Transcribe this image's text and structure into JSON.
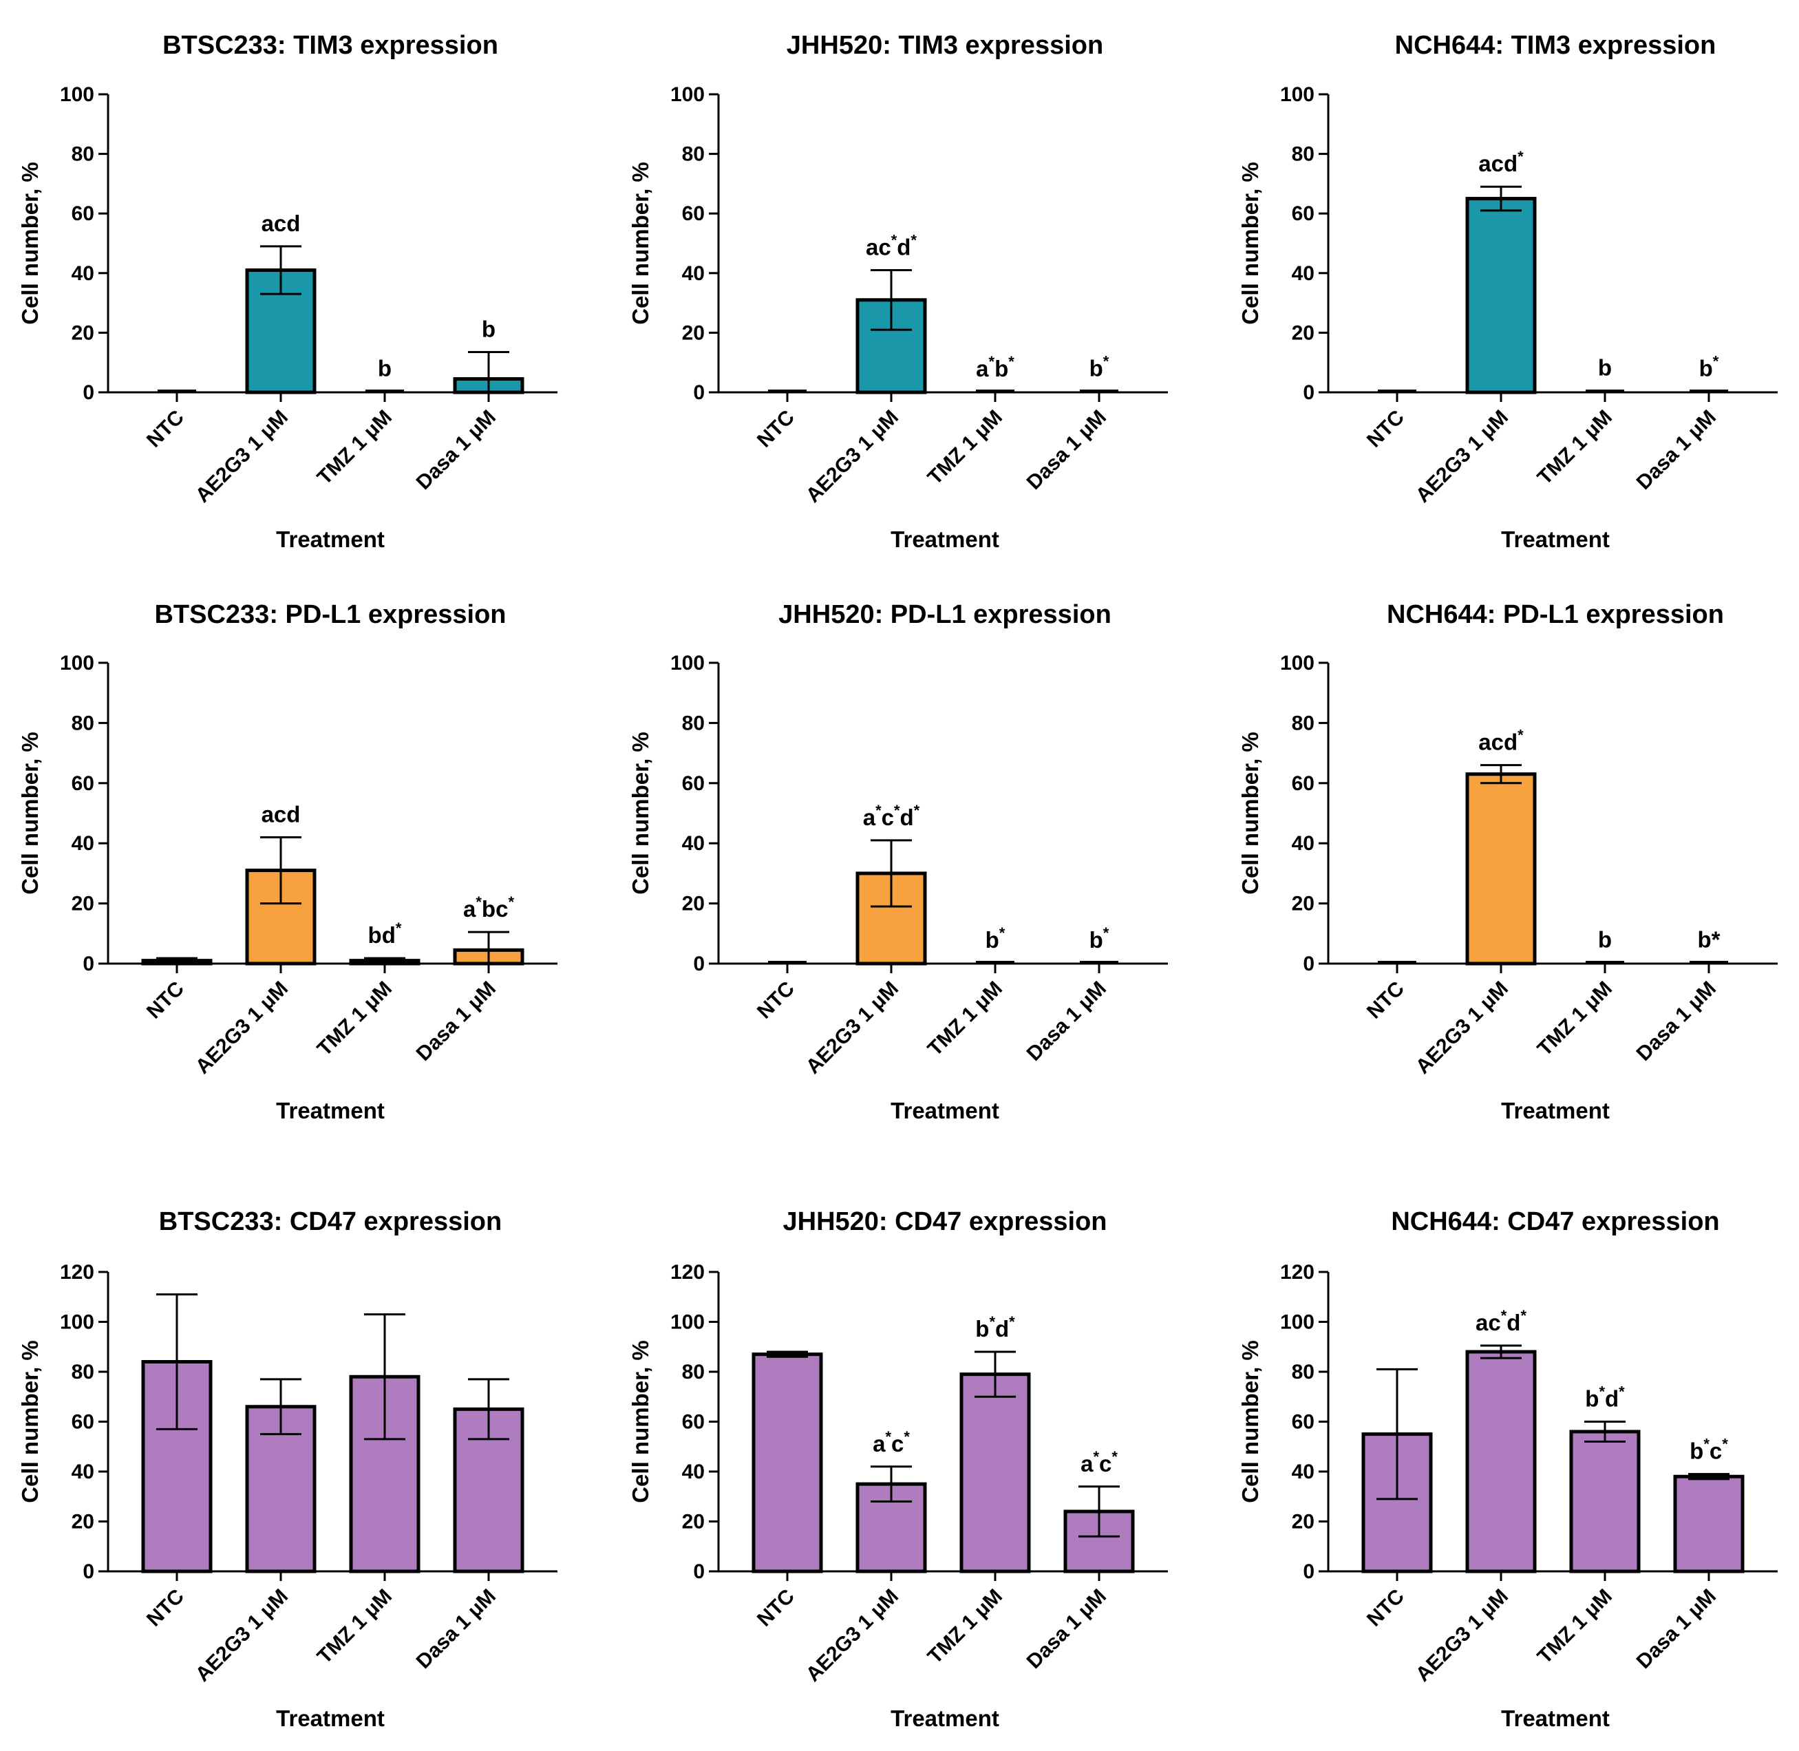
{
  "chart_data": [
    {
      "type": "bar",
      "title": "BTSC233: TIM3 expression",
      "xlabel": "Treatment",
      "ylabel": "Cell number, %",
      "ylim": [
        0,
        100
      ],
      "yticks": [
        0,
        20,
        40,
        60,
        80,
        100
      ],
      "color": "#1a97a8",
      "categories": [
        "NTC",
        "AE2G3 1 μM",
        "TMZ 1 μM",
        "Dasa 1 μM"
      ],
      "values": [
        0.3,
        41,
        0.2,
        4.5
      ],
      "errors": [
        0.3,
        8,
        0.2,
        9
      ],
      "annotations": [
        null,
        [
          {
            "t": "acd"
          }
        ],
        [
          {
            "t": "b"
          }
        ],
        [
          {
            "t": "b"
          }
        ]
      ]
    },
    {
      "type": "bar",
      "title": "JHH520: TIM3 expression",
      "xlabel": "Treatment",
      "ylabel": "Cell number, %",
      "ylim": [
        0,
        100
      ],
      "yticks": [
        0,
        20,
        40,
        60,
        80,
        100
      ],
      "color": "#1a97a8",
      "categories": [
        "NTC",
        "AE2G3 1 μM",
        "TMZ 1 μM",
        "Dasa 1 μM"
      ],
      "values": [
        0.2,
        31,
        0.1,
        0.2
      ],
      "errors": [
        0.2,
        10,
        0.1,
        0.2
      ],
      "annotations": [
        null,
        [
          {
            "t": "ac"
          },
          {
            "t": "*",
            "s": 1
          },
          {
            "t": "d"
          },
          {
            "t": "*",
            "s": 1
          }
        ],
        [
          {
            "t": "a"
          },
          {
            "t": "*",
            "s": 1
          },
          {
            "t": "b"
          },
          {
            "t": "*",
            "s": 1
          }
        ],
        [
          {
            "t": "b"
          },
          {
            "t": "*",
            "s": 1
          }
        ]
      ]
    },
    {
      "type": "bar",
      "title": "NCH644: TIM3 expression",
      "xlabel": "Treatment",
      "ylabel": "Cell number, %",
      "ylim": [
        0,
        100
      ],
      "yticks": [
        0,
        20,
        40,
        60,
        80,
        100
      ],
      "color": "#1a97a8",
      "categories": [
        "NTC",
        "AE2G3 1 μM",
        "TMZ 1 μM",
        "Dasa 1 μM"
      ],
      "values": [
        0.3,
        65,
        0.3,
        0.2
      ],
      "errors": [
        0.3,
        4,
        0.3,
        0.2
      ],
      "annotations": [
        null,
        [
          {
            "t": "acd"
          },
          {
            "t": "*",
            "s": 1
          }
        ],
        [
          {
            "t": "b"
          }
        ],
        [
          {
            "t": "b"
          },
          {
            "t": "*",
            "s": 1
          }
        ]
      ]
    },
    {
      "type": "bar",
      "title": "BTSC233: PD-L1 expression",
      "xlabel": "Treatment",
      "ylabel": "Cell number, %",
      "ylim": [
        0,
        100
      ],
      "yticks": [
        0,
        20,
        40,
        60,
        80,
        100
      ],
      "color": "#f7a23e",
      "categories": [
        "NTC",
        "AE2G3 1 μM",
        "TMZ 1 μM",
        "Dasa 1 μM"
      ],
      "values": [
        1,
        31,
        1,
        4.5
      ],
      "errors": [
        0.8,
        11,
        0.8,
        6
      ],
      "annotations": [
        null,
        [
          {
            "t": "acd"
          }
        ],
        [
          {
            "t": "bd"
          },
          {
            "t": "*",
            "s": 1
          }
        ],
        [
          {
            "t": "a"
          },
          {
            "t": "*",
            "s": 1
          },
          {
            "t": "bc"
          },
          {
            "t": "*",
            "s": 1
          }
        ]
      ]
    },
    {
      "type": "bar",
      "title": "JHH520: PD-L1 expression",
      "xlabel": "Treatment",
      "ylabel": "Cell number, %",
      "ylim": [
        0,
        100
      ],
      "yticks": [
        0,
        20,
        40,
        60,
        80,
        100
      ],
      "color": "#f7a23e",
      "categories": [
        "NTC",
        "AE2G3 1 μM",
        "TMZ 1 μM",
        "Dasa 1 μM"
      ],
      "values": [
        0.2,
        30,
        0.1,
        0.1
      ],
      "errors": [
        0.2,
        11,
        0.1,
        0.1
      ],
      "annotations": [
        null,
        [
          {
            "t": "a"
          },
          {
            "t": "*",
            "s": 1
          },
          {
            "t": "c"
          },
          {
            "t": "*",
            "s": 1
          },
          {
            "t": "d"
          },
          {
            "t": "*",
            "s": 1
          }
        ],
        [
          {
            "t": "b"
          },
          {
            "t": "*",
            "s": 1
          }
        ],
        [
          {
            "t": "b"
          },
          {
            "t": "*",
            "s": 1
          }
        ]
      ]
    },
    {
      "type": "bar",
      "title": "NCH644: PD-L1 expression",
      "xlabel": "Treatment",
      "ylabel": "Cell number, %",
      "ylim": [
        0,
        100
      ],
      "yticks": [
        0,
        20,
        40,
        60,
        80,
        100
      ],
      "color": "#f7a23e",
      "categories": [
        "NTC",
        "AE2G3 1 μM",
        "TMZ 1 μM",
        "Dasa 1 μM"
      ],
      "values": [
        0.1,
        63,
        0.2,
        0.2
      ],
      "errors": [
        0.1,
        3,
        0.2,
        0.2
      ],
      "annotations": [
        null,
        [
          {
            "t": "acd"
          },
          {
            "t": "*",
            "s": 1
          }
        ],
        [
          {
            "t": "b"
          }
        ],
        [
          {
            "t": "b*"
          }
        ]
      ]
    },
    {
      "type": "bar",
      "title": "BTSC233: CD47 expression",
      "xlabel": "Treatment",
      "ylabel": "Cell number, %",
      "ylim": [
        0,
        120
      ],
      "yticks": [
        0,
        20,
        40,
        60,
        80,
        100,
        120
      ],
      "color": "#b07cc0",
      "categories": [
        "NTC",
        "AE2G3 1 μM",
        "TMZ 1 μM",
        "Dasa 1 μM"
      ],
      "values": [
        84,
        66,
        78,
        65
      ],
      "errors": [
        27,
        11,
        25,
        12
      ],
      "annotations": [
        null,
        null,
        null,
        null
      ]
    },
    {
      "type": "bar",
      "title": "JHH520: CD47 expression",
      "xlabel": "Treatment",
      "ylabel": "Cell number, %",
      "ylim": [
        0,
        120
      ],
      "yticks": [
        0,
        20,
        40,
        60,
        80,
        100,
        120
      ],
      "color": "#b07cc0",
      "categories": [
        "NTC",
        "AE2G3 1 μM",
        "TMZ 1 μM",
        "Dasa 1 μM"
      ],
      "values": [
        87,
        35,
        79,
        24
      ],
      "errors": [
        1,
        7,
        9,
        10
      ],
      "annotations": [
        null,
        [
          {
            "t": "a"
          },
          {
            "t": "*",
            "s": 1
          },
          {
            "t": "c"
          },
          {
            "t": "*",
            "s": 1
          }
        ],
        [
          {
            "t": "b"
          },
          {
            "t": "*",
            "s": 1
          },
          {
            "t": "d"
          },
          {
            "t": "*",
            "s": 1
          }
        ],
        [
          {
            "t": "a"
          },
          {
            "t": "*",
            "s": 1
          },
          {
            "t": "c"
          },
          {
            "t": "*",
            "s": 1
          }
        ]
      ]
    },
    {
      "type": "bar",
      "title": "NCH644: CD47 expression",
      "xlabel": "Treatment",
      "ylabel": "Cell number, %",
      "ylim": [
        0,
        120
      ],
      "yticks": [
        0,
        20,
        40,
        60,
        80,
        100,
        120
      ],
      "color": "#b07cc0",
      "categories": [
        "NTC",
        "AE2G3 1 μM",
        "TMZ 1 μM",
        "Dasa 1 μM"
      ],
      "values": [
        55,
        88,
        56,
        38
      ],
      "errors": [
        26,
        2.5,
        4,
        1
      ],
      "annotations": [
        null,
        [
          {
            "t": "ac"
          },
          {
            "t": "*",
            "s": 1
          },
          {
            "t": "d"
          },
          {
            "t": "*",
            "s": 1
          }
        ],
        [
          {
            "t": "b"
          },
          {
            "t": "*",
            "s": 1
          },
          {
            "t": "d"
          },
          {
            "t": "*",
            "s": 1
          }
        ],
        [
          {
            "t": "b"
          },
          {
            "t": "*",
            "s": 1
          },
          {
            "t": "c"
          },
          {
            "t": "*",
            "s": 1
          }
        ]
      ]
    }
  ]
}
